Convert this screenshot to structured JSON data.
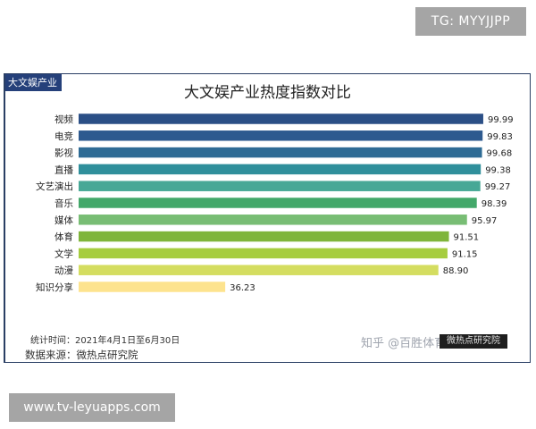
{
  "tg_badge": "TG: MYYJJPP",
  "corner_tag": "大文娱产业",
  "watermark": "知乎 @百胜体育平台",
  "watermark_logo": "微热点研究院",
  "footer": {
    "stat_time": "统计时间：2021年4月1日至6月30日",
    "source": "数据来源：微热点研究院"
  },
  "bottom_url": "www.tv-leyuapps.com",
  "chart_data": {
    "type": "bar",
    "orientation": "horizontal",
    "title": "大文娱产业热度指数对比",
    "xlabel": "",
    "ylabel": "",
    "xlim": [
      0,
      100
    ],
    "grid": false,
    "categories": [
      "视频",
      "电竞",
      "影视",
      "直播",
      "文艺演出",
      "音乐",
      "媒体",
      "体育",
      "文学",
      "动漫",
      "知识分享"
    ],
    "values": [
      99.99,
      99.83,
      99.68,
      99.38,
      99.27,
      98.39,
      95.97,
      91.51,
      91.15,
      88.9,
      36.23
    ],
    "value_labels": [
      "99.99",
      "99.83",
      "99.68",
      "99.38",
      "99.27",
      "98.39",
      "95.97",
      "91.51",
      "91.15",
      "88.90",
      "36.23"
    ],
    "colors": [
      "#2b4f86",
      "#2e5a8f",
      "#2e6b95",
      "#2f8f9b",
      "#47a896",
      "#43a86a",
      "#78bd74",
      "#7fb53a",
      "#a6cd3f",
      "#d4dd60",
      "#fde38e"
    ]
  }
}
